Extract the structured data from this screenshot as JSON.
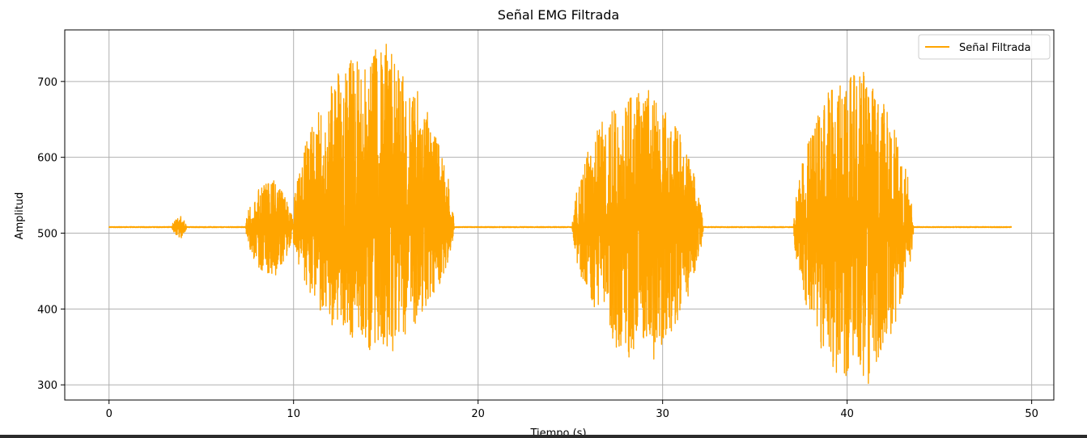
{
  "chart_data": {
    "type": "line",
    "title": "Señal EMG Filtrada",
    "xlabel": "Tiempo (s)",
    "ylabel": "Amplitud",
    "xlim": [
      -2.4,
      51.2
    ],
    "ylim": [
      280,
      768
    ],
    "xticks": [
      0,
      10,
      20,
      30,
      40,
      50
    ],
    "yticks": [
      300,
      400,
      500,
      600,
      700
    ],
    "grid": true,
    "legend_position": "top-right",
    "series": [
      {
        "name": "Señal Filtrada",
        "color": "#ffa500",
        "baseline": 508,
        "x_end": 48.9,
        "segments": [
          {
            "start": 3.4,
            "end": 4.2,
            "peak": 522,
            "trough": 494
          },
          {
            "start": 7.4,
            "end": 10.0,
            "peak": 569,
            "trough": 445
          },
          {
            "start": 9.9,
            "end": 18.7,
            "peak": 749,
            "trough": 345
          },
          {
            "start": 25.1,
            "end": 32.2,
            "peak": 688,
            "trough": 334
          },
          {
            "start": 37.1,
            "end": 43.6,
            "peak": 712,
            "trough": 302
          }
        ]
      }
    ]
  }
}
